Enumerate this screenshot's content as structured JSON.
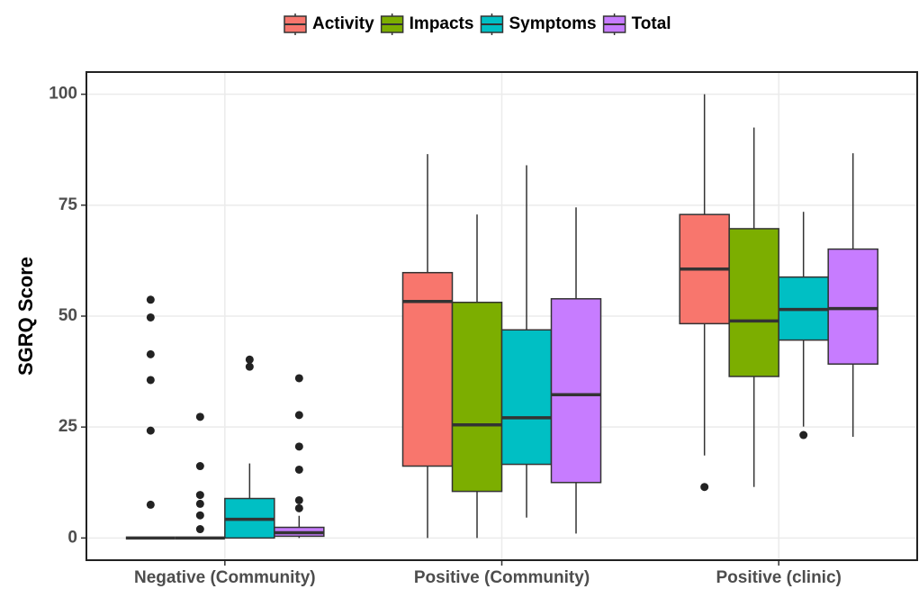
{
  "chart_data": {
    "type": "boxplot",
    "y_label": "SGRQ Score",
    "categories": [
      "Negative (Community)",
      "Positive (Community)",
      "Positive (clinic)"
    ],
    "ylim": [
      -5,
      105
    ],
    "yticks": [
      0,
      25,
      50,
      75,
      100
    ],
    "grid": true,
    "legend": "top",
    "series": [
      {
        "name": "Activity",
        "color": "#f8766d",
        "boxes": [
          {
            "whisker_low": 0,
            "q1": 0,
            "median": 0,
            "q3": 0,
            "whisker_high": 0,
            "outliers": [
              53.7,
              49.7,
              41.4,
              35.6,
              24.2,
              7.5
            ]
          },
          {
            "whisker_low": 0,
            "q1": 16.2,
            "median": 53.3,
            "q3": 59.8,
            "whisker_high": 86.5,
            "outliers": []
          },
          {
            "whisker_low": 18.6,
            "q1": 48.3,
            "median": 60.6,
            "q3": 72.9,
            "whisker_high": 100,
            "outliers": [
              11.5
            ]
          }
        ]
      },
      {
        "name": "Impacts",
        "color": "#7cae00",
        "boxes": [
          {
            "whisker_low": 0,
            "q1": 0,
            "median": 0,
            "q3": 0,
            "whisker_high": 0,
            "outliers": [
              27.3,
              16.2,
              9.7,
              7.7,
              5.1,
              2.0
            ]
          },
          {
            "whisker_low": 0,
            "q1": 10.5,
            "median": 25.5,
            "q3": 53.1,
            "whisker_high": 72.9,
            "outliers": []
          },
          {
            "whisker_low": 11.5,
            "q1": 36.4,
            "median": 48.9,
            "q3": 69.7,
            "whisker_high": 92.5,
            "outliers": []
          }
        ]
      },
      {
        "name": "Symptoms",
        "color": "#00bfc4",
        "boxes": [
          {
            "whisker_low": 0,
            "q1": 0,
            "median": 4.2,
            "q3": 8.9,
            "whisker_high": 16.8,
            "outliers": [
              40.2,
              38.6
            ]
          },
          {
            "whisker_low": 4.6,
            "q1": 16.6,
            "median": 27.1,
            "q3": 46.9,
            "whisker_high": 84.0,
            "outliers": []
          },
          {
            "whisker_low": 25.1,
            "q1": 44.6,
            "median": 51.5,
            "q3": 58.8,
            "whisker_high": 73.5,
            "outliers": [
              23.2
            ]
          }
        ]
      },
      {
        "name": "Total",
        "color": "#c77cff",
        "boxes": [
          {
            "whisker_low": 0,
            "q1": 0.4,
            "median": 1.2,
            "q3": 2.4,
            "whisker_high": 5.0,
            "outliers": [
              36.0,
              27.7,
              20.6,
              15.4,
              8.5,
              6.7
            ]
          },
          {
            "whisker_low": 1.0,
            "q1": 12.5,
            "median": 32.3,
            "q3": 53.9,
            "whisker_high": 74.5,
            "outliers": []
          },
          {
            "whisker_low": 22.8,
            "q1": 39.2,
            "median": 51.7,
            "q3": 65.1,
            "whisker_high": 86.7,
            "outliers": []
          }
        ]
      }
    ]
  }
}
